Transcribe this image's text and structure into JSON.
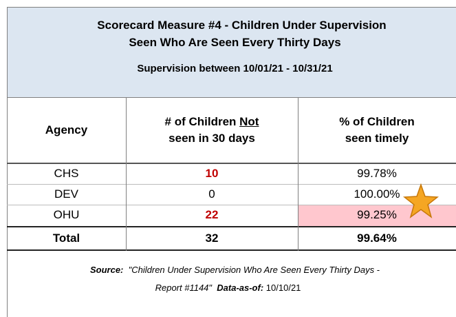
{
  "header": {
    "title_lines": [
      "Scorecard Measure #4 - Children Under Supervision",
      "Seen Who Are Seen Every Thirty Days"
    ],
    "subtitle": "Supervision between 10/01/21 - 10/31/21"
  },
  "table": {
    "columns": [
      {
        "text": "Agency"
      },
      {
        "before": "# of Children ",
        "underlined": "Not",
        "after": "seen in 30 days"
      },
      {
        "first": "% of Children",
        "second": "seen timely"
      }
    ],
    "rows": [
      [
        "CHS",
        "10",
        "99.78%"
      ],
      [
        "DEV",
        "0",
        "100.00%"
      ],
      [
        "OHU",
        "22",
        "99.25%"
      ]
    ],
    "total": [
      "Total",
      "32",
      "99.64%"
    ]
  },
  "footer": {
    "source_label": "Source:",
    "source_text": "\"Children Under Supervision Who Are Seen Every Thirty Days - Report #1144\"",
    "asof_label": "Data-as-of:",
    "asof_text": "10/10/21"
  }
}
